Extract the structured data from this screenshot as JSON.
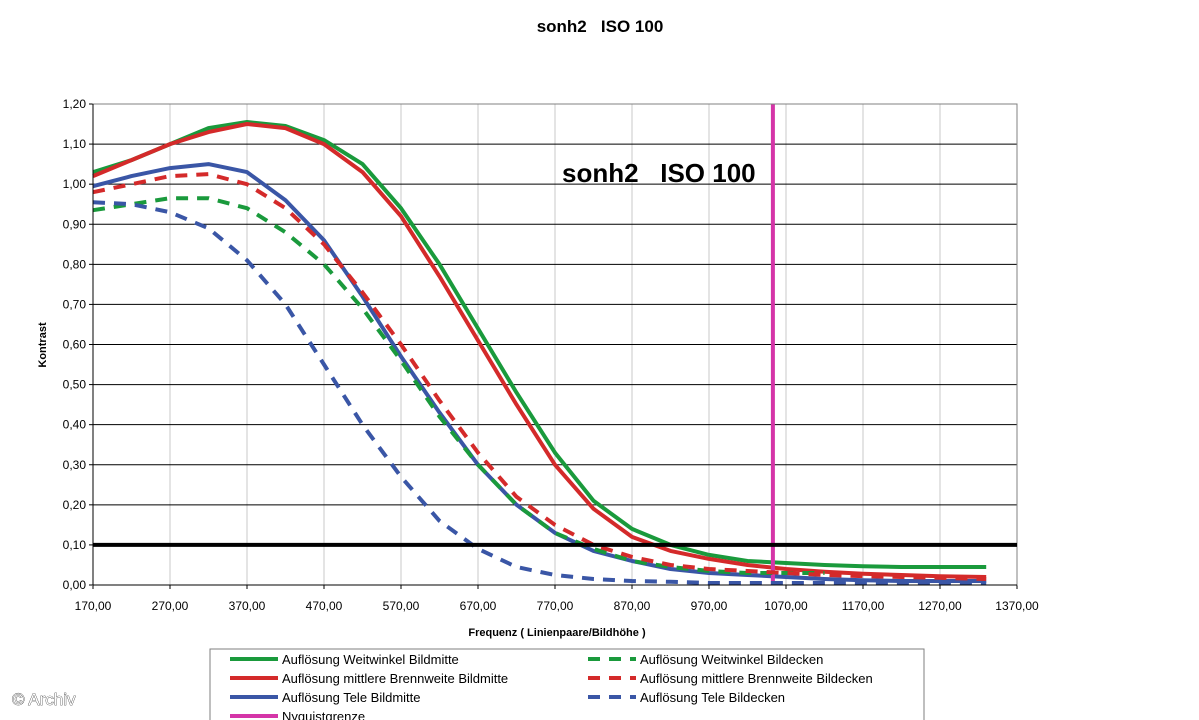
{
  "chart_data": {
    "type": "line",
    "title": "sonh2   ISO 100",
    "inner_title": "sonh2   ISO 100",
    "xlabel": "Frequenz ( Linienpaare/Bildhöhe )",
    "ylabel": "Kontrast",
    "xlim": [
      170,
      1370
    ],
    "ylim": [
      0,
      1.2
    ],
    "x_ticks": [
      "170,00",
      "270,00",
      "370,00",
      "470,00",
      "570,00",
      "670,00",
      "770,00",
      "870,00",
      "970,00",
      "1070,00",
      "1170,00",
      "1270,00",
      "1370,00"
    ],
    "y_ticks": [
      "0,00",
      "0,10",
      "0,20",
      "0,30",
      "0,40",
      "0,50",
      "0,60",
      "0,70",
      "0,80",
      "0,90",
      "1,00",
      "1,10",
      "1,20"
    ],
    "grid": true,
    "legend_position": "bottom",
    "reference_line_y": 0.1,
    "series": [
      {
        "name": "Auflösung Weitwinkel Bildmitte",
        "color": "#1a9a3c",
        "dash": "solid",
        "x": [
          170,
          220,
          270,
          320,
          370,
          420,
          470,
          520,
          570,
          620,
          670,
          720,
          770,
          820,
          870,
          920,
          970,
          1020,
          1070,
          1120,
          1170,
          1220,
          1270,
          1330
        ],
        "y": [
          1.03,
          1.06,
          1.1,
          1.14,
          1.155,
          1.145,
          1.11,
          1.05,
          0.94,
          0.8,
          0.64,
          0.48,
          0.33,
          0.21,
          0.14,
          0.1,
          0.075,
          0.06,
          0.055,
          0.05,
          0.047,
          0.045,
          0.045,
          0.045
        ]
      },
      {
        "name": "Auflösung mittlere Brennweite Bildmitte",
        "color": "#d42a2a",
        "dash": "solid",
        "x": [
          170,
          220,
          270,
          320,
          370,
          420,
          470,
          520,
          570,
          620,
          670,
          720,
          770,
          820,
          870,
          920,
          970,
          1020,
          1070,
          1120,
          1170,
          1220,
          1270,
          1330
        ],
        "y": [
          1.02,
          1.06,
          1.1,
          1.13,
          1.15,
          1.14,
          1.1,
          1.03,
          0.92,
          0.77,
          0.61,
          0.45,
          0.3,
          0.19,
          0.12,
          0.085,
          0.065,
          0.05,
          0.04,
          0.033,
          0.028,
          0.025,
          0.022,
          0.02
        ]
      },
      {
        "name": "Auflösung Tele Bildmitte",
        "color": "#3a56a6",
        "dash": "solid",
        "x": [
          170,
          220,
          270,
          320,
          370,
          420,
          470,
          520,
          570,
          620,
          670,
          720,
          770,
          820,
          870,
          920,
          970,
          1020,
          1070,
          1120,
          1170,
          1220,
          1270,
          1330
        ],
        "y": [
          0.995,
          1.02,
          1.04,
          1.05,
          1.03,
          0.96,
          0.86,
          0.72,
          0.57,
          0.43,
          0.3,
          0.2,
          0.13,
          0.085,
          0.06,
          0.04,
          0.03,
          0.025,
          0.02,
          0.015,
          0.012,
          0.01,
          0.01,
          0.01
        ]
      },
      {
        "name": "Nyquistgrenze",
        "color": "#d535a8",
        "dash": "solid",
        "x": [
          1053,
          1053
        ],
        "y": [
          0,
          1.2
        ]
      },
      {
        "name": "Auflösung Weitwinkel Bildecken",
        "color": "#1a9a3c",
        "dash": "dashed",
        "x": [
          170,
          220,
          270,
          320,
          370,
          420,
          470,
          520,
          570,
          620,
          670,
          720,
          770,
          820,
          870,
          920,
          970,
          1020,
          1070,
          1120
        ],
        "y": [
          0.935,
          0.95,
          0.965,
          0.965,
          0.94,
          0.88,
          0.8,
          0.69,
          0.56,
          0.42,
          0.3,
          0.2,
          0.13,
          0.09,
          0.06,
          0.045,
          0.035,
          0.03,
          0.03,
          0.03
        ]
      },
      {
        "name": "Auflösung mittlere Brennweite Bildecken",
        "color": "#d42a2a",
        "dash": "dashed",
        "x": [
          170,
          220,
          270,
          320,
          370,
          420,
          470,
          520,
          570,
          620,
          670,
          720,
          770,
          820,
          870,
          920,
          970,
          1020,
          1070,
          1120,
          1170,
          1220,
          1270,
          1330
        ],
        "y": [
          0.98,
          1.0,
          1.02,
          1.025,
          1.0,
          0.94,
          0.85,
          0.73,
          0.6,
          0.46,
          0.33,
          0.22,
          0.15,
          0.1,
          0.07,
          0.05,
          0.04,
          0.035,
          0.03,
          0.025,
          0.022,
          0.02,
          0.018,
          0.015
        ]
      },
      {
        "name": "Auflösung Tele Bildecken",
        "color": "#3a56a6",
        "dash": "dashed",
        "x": [
          170,
          220,
          270,
          320,
          370,
          420,
          470,
          520,
          570,
          620,
          670,
          720,
          770,
          820,
          870,
          920,
          970,
          1020,
          1070,
          1120,
          1170,
          1220,
          1270,
          1330
        ],
        "y": [
          0.955,
          0.95,
          0.93,
          0.89,
          0.81,
          0.7,
          0.55,
          0.4,
          0.27,
          0.16,
          0.09,
          0.045,
          0.025,
          0.015,
          0.01,
          0.008,
          0.005,
          0.005,
          0.005,
          0.005,
          0.005,
          0.005,
          0.005,
          0.005
        ]
      }
    ]
  },
  "credit": "© Archiv"
}
